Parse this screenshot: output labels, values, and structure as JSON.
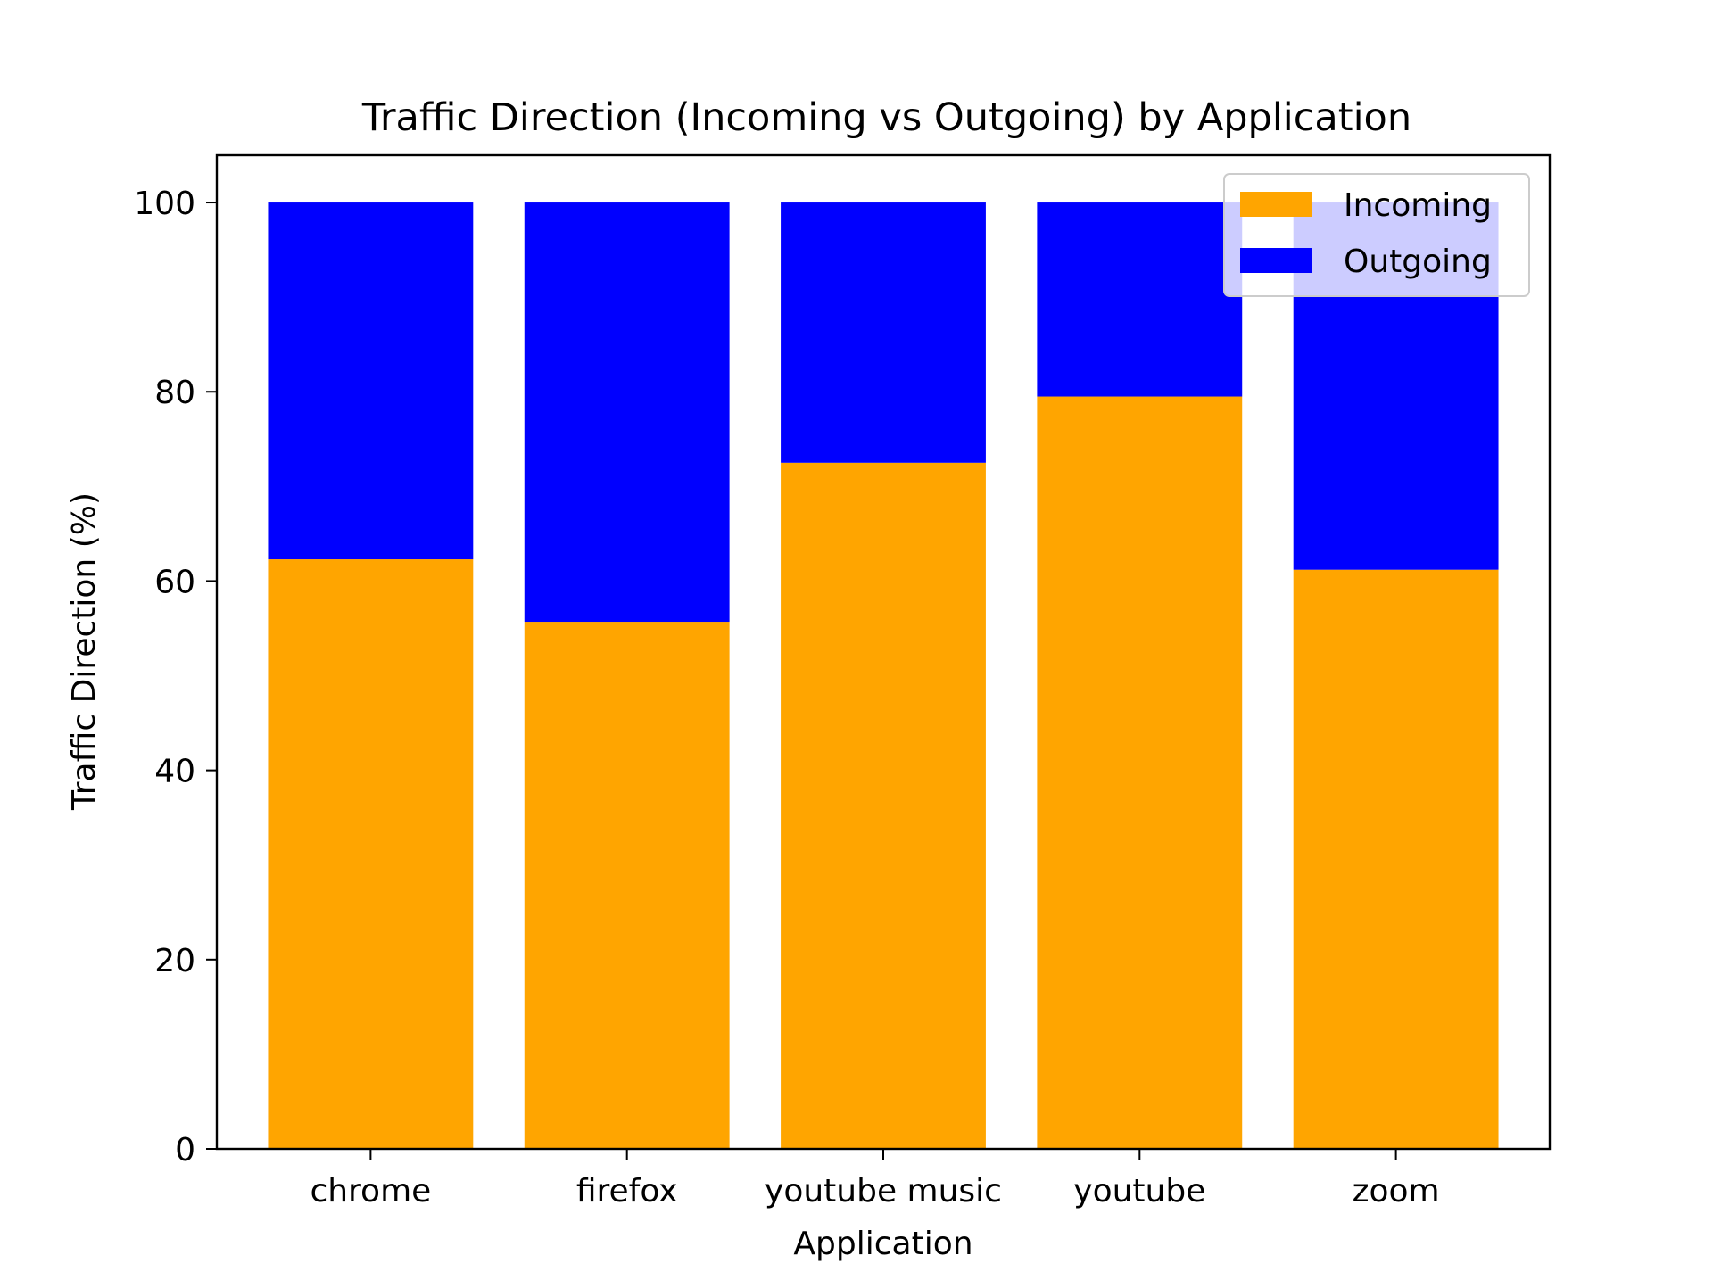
{
  "chart_data": {
    "type": "bar",
    "stacked": true,
    "title": "Traffic Direction (Incoming vs Outgoing) by Application",
    "xlabel": "Application",
    "ylabel": "Traffic Direction (%)",
    "categories": [
      "chrome",
      "firefox",
      "youtube music",
      "youtube",
      "zoom"
    ],
    "series": [
      {
        "name": "Incoming",
        "color": "#FFA500",
        "values": [
          62.3,
          55.7,
          72.5,
          79.5,
          61.2
        ]
      },
      {
        "name": "Outgoing",
        "color": "#0000FF",
        "values": [
          37.7,
          44.3,
          27.5,
          20.5,
          38.8
        ]
      }
    ],
    "ylim": [
      0,
      105
    ],
    "yticks": [
      0,
      20,
      40,
      60,
      80,
      100
    ],
    "grid": false,
    "legend_position": "top-right"
  }
}
